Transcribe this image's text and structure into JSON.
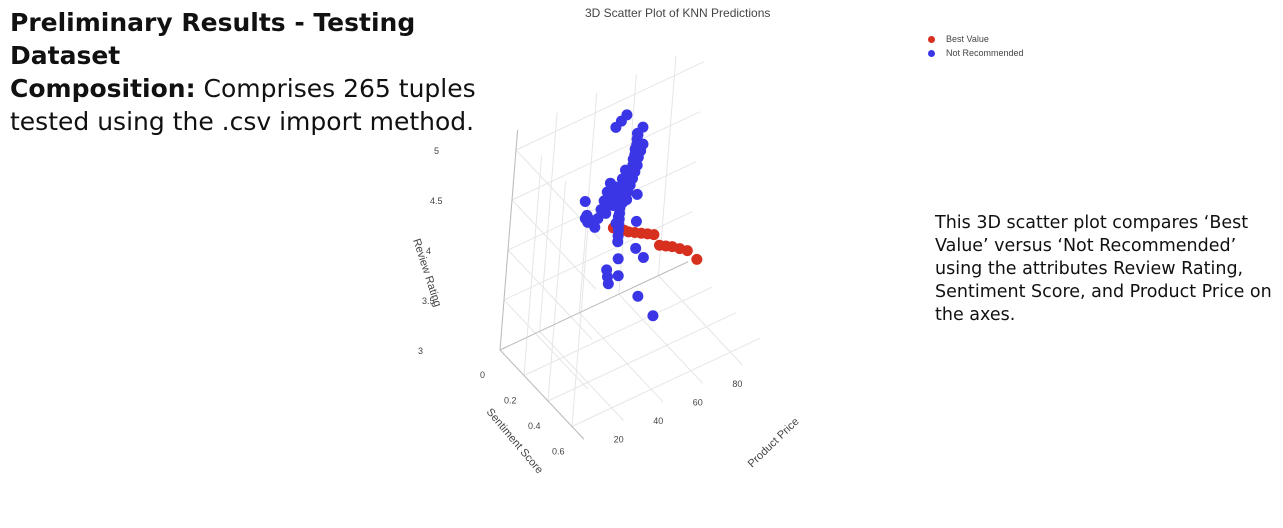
{
  "slide": {
    "title_bold": "Preliminary Results - Testing Dataset",
    "composition_label": "Composition:",
    "composition_text": " Comprises 265 tuples tested using the .csv import method.",
    "description": "This 3D scatter plot compares ‘Best Value’ versus ‘Not Recommended’ using the attributes Review Rating, Sentiment Score, and Product Price on the axes."
  },
  "chart_data": {
    "type": "scatter",
    "projection": "3d",
    "title": "3D Scatter Plot of KNN Predictions",
    "axes": {
      "x": {
        "label": "Product Price",
        "ticks": [
          "20",
          "40",
          "60",
          "80"
        ]
      },
      "y": {
        "label": "Sentiment Score",
        "ticks": [
          "0",
          "0.2",
          "0.4",
          "0.6"
        ]
      },
      "z": {
        "label": "Review Rating",
        "ticks": [
          "3",
          "3.5",
          "4",
          "4.5",
          "5"
        ]
      }
    },
    "legend_position": "top-right",
    "series": [
      {
        "name": "Best Value",
        "color": "#d7301f",
        "points": [
          [
            12,
            0.62,
            4.9
          ],
          [
            14,
            0.64,
            4.9
          ],
          [
            15,
            0.66,
            4.9
          ],
          [
            16,
            0.68,
            4.9
          ],
          [
            18,
            0.7,
            4.9
          ],
          [
            20,
            0.72,
            4.9
          ],
          [
            22,
            0.74,
            4.9
          ],
          [
            24,
            0.76,
            4.9
          ],
          [
            26,
            0.78,
            4.8
          ],
          [
            28,
            0.8,
            4.8
          ],
          [
            30,
            0.82,
            4.8
          ],
          [
            32,
            0.85,
            4.8
          ],
          [
            34,
            0.88,
            4.8
          ],
          [
            38,
            0.9,
            4.7
          ]
        ]
      },
      {
        "name": "Not Recommended",
        "color": "#3a36e6",
        "points": [
          [
            52,
            0.2,
            5.0
          ],
          [
            48,
            0.22,
            5.0
          ],
          [
            46,
            0.25,
            5.0
          ],
          [
            44,
            0.28,
            5.0
          ],
          [
            42,
            0.3,
            5.0
          ],
          [
            40,
            0.33,
            5.0
          ],
          [
            38,
            0.35,
            5.0
          ],
          [
            36,
            0.38,
            5.0
          ],
          [
            34,
            0.4,
            5.0
          ],
          [
            32,
            0.42,
            5.0
          ],
          [
            30,
            0.45,
            5.0
          ],
          [
            28,
            0.48,
            5.0
          ],
          [
            26,
            0.5,
            5.0
          ],
          [
            24,
            0.52,
            5.0
          ],
          [
            22,
            0.55,
            5.0
          ],
          [
            50,
            0.24,
            4.9
          ],
          [
            47,
            0.27,
            4.9
          ],
          [
            44,
            0.3,
            4.9
          ],
          [
            41,
            0.34,
            4.9
          ],
          [
            38,
            0.37,
            4.9
          ],
          [
            35,
            0.4,
            4.9
          ],
          [
            32,
            0.43,
            4.9
          ],
          [
            29,
            0.46,
            4.9
          ],
          [
            26,
            0.5,
            4.9
          ],
          [
            48,
            0.22,
            4.8
          ],
          [
            45,
            0.26,
            4.8
          ],
          [
            42,
            0.29,
            4.8
          ],
          [
            39,
            0.33,
            4.8
          ],
          [
            36,
            0.36,
            4.8
          ],
          [
            33,
            0.39,
            4.8
          ],
          [
            30,
            0.42,
            4.8
          ],
          [
            27,
            0.45,
            4.8
          ],
          [
            24,
            0.48,
            4.8
          ],
          [
            21,
            0.52,
            4.8
          ],
          [
            18,
            0.55,
            4.8
          ],
          [
            50,
            0.2,
            4.7
          ],
          [
            46,
            0.24,
            4.7
          ],
          [
            43,
            0.27,
            4.7
          ],
          [
            40,
            0.31,
            4.7
          ],
          [
            37,
            0.34,
            4.7
          ],
          [
            34,
            0.37,
            4.7
          ],
          [
            31,
            0.4,
            4.7
          ],
          [
            46,
            0.18,
            4.6
          ],
          [
            42,
            0.22,
            4.6
          ],
          [
            38,
            0.26,
            4.6
          ],
          [
            34,
            0.3,
            4.6
          ],
          [
            30,
            0.34,
            4.6
          ],
          [
            40,
            0.16,
            4.5
          ],
          [
            36,
            0.2,
            4.5
          ],
          [
            32,
            0.24,
            4.5
          ],
          [
            28,
            0.28,
            4.5
          ],
          [
            24,
            0.32,
            4.5
          ],
          [
            20,
            0.36,
            4.5
          ],
          [
            44,
            0.14,
            4.4
          ],
          [
            40,
            0.18,
            4.4
          ],
          [
            36,
            0.22,
            4.4
          ],
          [
            32,
            0.26,
            4.4
          ],
          [
            46,
            0.16,
            4.2
          ],
          [
            44,
            0.19,
            4.2
          ],
          [
            42,
            0.22,
            4.2
          ],
          [
            40,
            0.25,
            4.2
          ],
          [
            38,
            0.28,
            4.2
          ],
          [
            36,
            0.31,
            4.2
          ],
          [
            34,
            0.34,
            4.2
          ],
          [
            28,
            0.36,
            4.0
          ],
          [
            26,
            0.4,
            4.0
          ],
          [
            24,
            0.44,
            4.0
          ],
          [
            54,
            0.04,
            4.9
          ],
          [
            50,
            0.06,
            4.9
          ],
          [
            46,
            0.08,
            4.9
          ],
          [
            62,
            0.02,
            4.6
          ],
          [
            60,
            0.08,
            4.1
          ],
          [
            58,
            0.12,
            3.9
          ],
          [
            56,
            0.16,
            3.7
          ],
          [
            50,
            0.12,
            3.6
          ],
          [
            48,
            0.16,
            3.5
          ],
          [
            70,
            0.02,
            3.3
          ],
          [
            66,
            0.06,
            3.0
          ],
          [
            72,
            0.1,
            2.8
          ],
          [
            18,
            0.3,
            4.7
          ],
          [
            16,
            0.34,
            4.6
          ],
          [
            14,
            0.38,
            4.7
          ],
          [
            12,
            0.42,
            4.7
          ],
          [
            10,
            0.46,
            4.8
          ]
        ]
      }
    ]
  }
}
